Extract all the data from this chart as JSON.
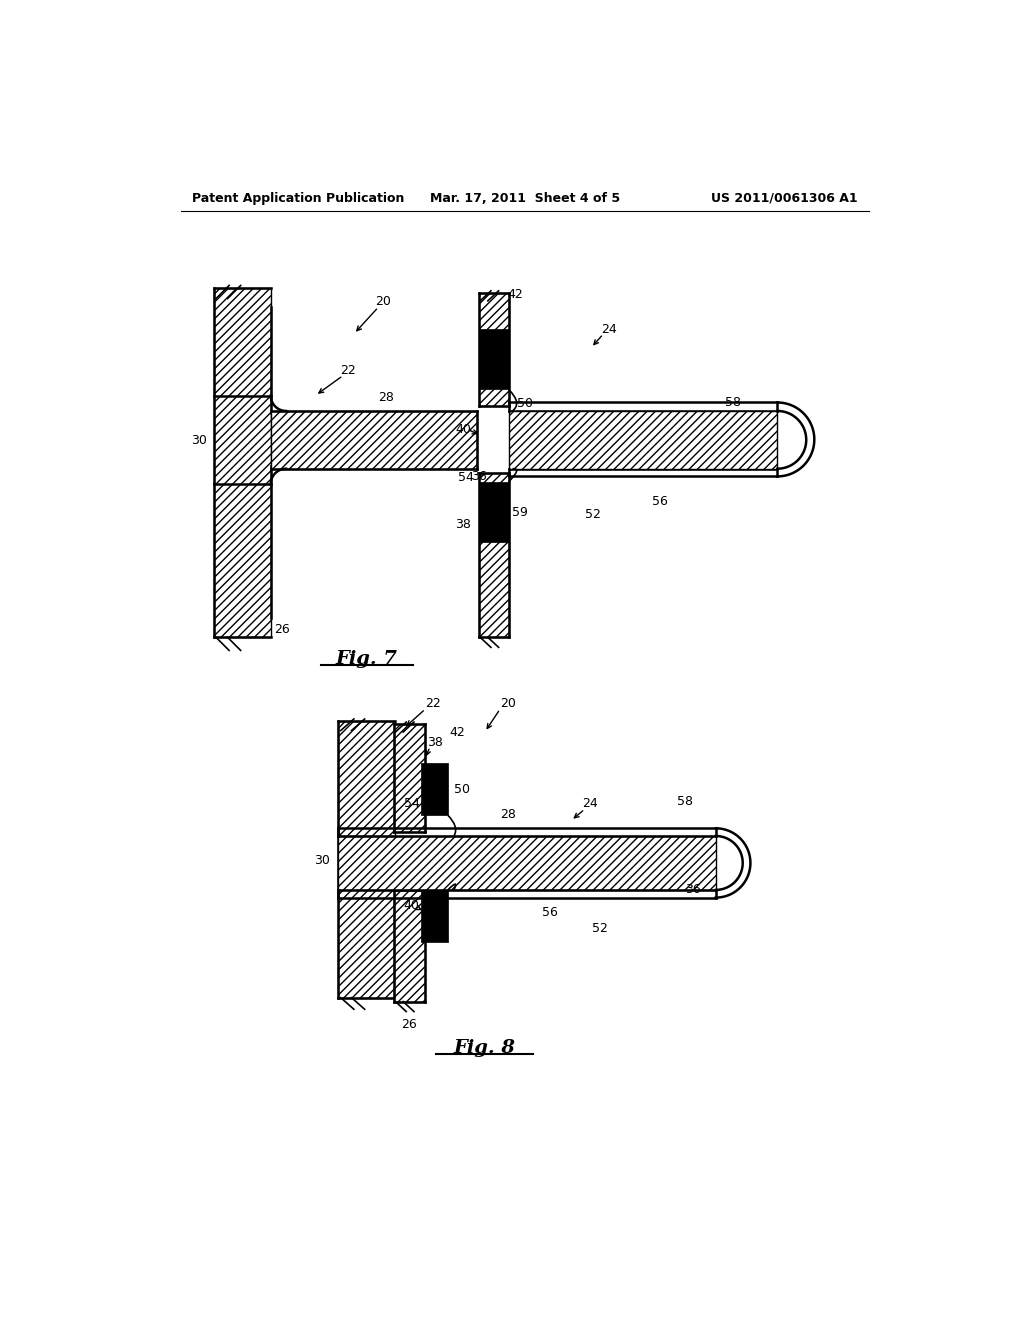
{
  "header_left": "Patent Application Publication",
  "header_mid": "Mar. 17, 2011  Sheet 4 of 5",
  "header_right": "US 2011/0061306 A1",
  "fig7_label": "Fig. 7",
  "fig8_label": "Fig. 8",
  "bg_color": "#ffffff"
}
